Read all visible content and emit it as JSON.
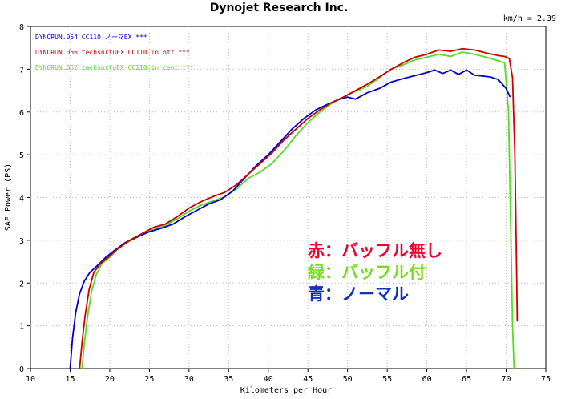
{
  "chart_data": {
    "type": "line",
    "title": "Dynojet  Research  Inc.",
    "corner_text": "km/h = 2.39",
    "xlabel": "Kilometers per Hour",
    "ylabel": "SAE Power (PS)",
    "xlim": [
      10,
      75
    ],
    "ylim": [
      0,
      8
    ],
    "x_ticks": [
      10,
      15,
      20,
      25,
      30,
      35,
      40,
      45,
      50,
      55,
      60,
      65,
      70,
      75
    ],
    "y_ticks": [
      0,
      1,
      2,
      3,
      4,
      5,
      6,
      7,
      8
    ],
    "grid": "dotted",
    "legend_placement": "top-left",
    "series": [
      {
        "name": "DYNORUN.054   CC110 ノーマEX ***",
        "color": "#0000cc",
        "x": [
          15.0,
          15.3,
          15.7,
          16.2,
          16.8,
          17.5,
          18.5,
          19.5,
          20.5,
          22,
          23.5,
          25,
          26.5,
          28,
          29.5,
          31,
          32.5,
          34,
          35.5,
          37,
          38.5,
          40,
          41.5,
          43,
          44.5,
          46,
          47.5,
          49,
          50,
          51,
          52.5,
          54,
          55.5,
          57,
          58.5,
          60,
          61,
          62,
          63,
          64,
          65,
          66,
          67,
          68,
          69,
          70,
          70.5
        ],
        "y": [
          0.0,
          0.7,
          1.3,
          1.75,
          2.05,
          2.25,
          2.42,
          2.6,
          2.75,
          2.95,
          3.08,
          3.2,
          3.28,
          3.38,
          3.55,
          3.7,
          3.85,
          3.95,
          4.15,
          4.45,
          4.75,
          5.0,
          5.3,
          5.6,
          5.85,
          6.05,
          6.18,
          6.3,
          6.35,
          6.3,
          6.45,
          6.55,
          6.7,
          6.78,
          6.85,
          6.92,
          6.98,
          6.9,
          6.98,
          6.88,
          6.98,
          6.86,
          6.84,
          6.82,
          6.76,
          6.55,
          6.35
        ]
      },
      {
        "name": "DYNORUN.056   techsorfuEX CC110  in off ***",
        "color": "#cc0000",
        "x": [
          16.2,
          16.5,
          16.9,
          17.4,
          18.0,
          18.8,
          19.8,
          21,
          22.5,
          24,
          25.5,
          27,
          28.5,
          30,
          31.5,
          33,
          34.5,
          36,
          37.5,
          39,
          40.5,
          42,
          43.5,
          45,
          46.5,
          48,
          49.5,
          51,
          52.5,
          54,
          55.5,
          57,
          58.5,
          60,
          61.5,
          63,
          64.5,
          66,
          67.5,
          69,
          69.8,
          70.4,
          70.8,
          71.1,
          71.3,
          71.4
        ],
        "y": [
          0.0,
          0.6,
          1.25,
          1.85,
          2.25,
          2.45,
          2.6,
          2.8,
          3.0,
          3.15,
          3.3,
          3.38,
          3.55,
          3.75,
          3.9,
          4.02,
          4.12,
          4.3,
          4.55,
          4.8,
          5.05,
          5.35,
          5.6,
          5.85,
          6.05,
          6.22,
          6.35,
          6.5,
          6.65,
          6.82,
          7.0,
          7.15,
          7.28,
          7.35,
          7.45,
          7.42,
          7.48,
          7.45,
          7.38,
          7.32,
          7.3,
          7.25,
          6.8,
          5.0,
          2.5,
          1.1
        ]
      },
      {
        "name": "DYNORUN.052   techsorfuEX CC110  in cent ***",
        "color": "#55dd22",
        "x": [
          16.5,
          16.8,
          17.2,
          17.7,
          18.3,
          19.0,
          20,
          21,
          22.5,
          24,
          25.5,
          27,
          28.5,
          30,
          31.5,
          33,
          34.5,
          36,
          37.5,
          39,
          40.5,
          42,
          43.5,
          45,
          46.5,
          48,
          49.5,
          51,
          52.5,
          54,
          55.5,
          57,
          58.5,
          60,
          61.5,
          63,
          64.5,
          66,
          67.5,
          69,
          69.8,
          70.3,
          70.6,
          70.8,
          71.0
        ],
        "y": [
          0.0,
          0.6,
          1.2,
          1.8,
          2.2,
          2.45,
          2.6,
          2.8,
          2.98,
          3.12,
          3.25,
          3.35,
          3.5,
          3.68,
          3.82,
          3.92,
          4.02,
          4.2,
          4.45,
          4.6,
          4.8,
          5.1,
          5.45,
          5.75,
          6.0,
          6.2,
          6.35,
          6.48,
          6.6,
          6.8,
          7.0,
          7.1,
          7.22,
          7.28,
          7.35,
          7.3,
          7.4,
          7.35,
          7.28,
          7.2,
          7.15,
          6.0,
          3.0,
          1.0,
          0.0
        ]
      }
    ],
    "annotations": [
      {
        "text": "赤：バッフル無し",
        "color": "#ee0033"
      },
      {
        "text": "緑：バッフル付",
        "color": "#77dd22"
      },
      {
        "text": "青：ノーマル",
        "color": "#1133bb"
      }
    ]
  }
}
